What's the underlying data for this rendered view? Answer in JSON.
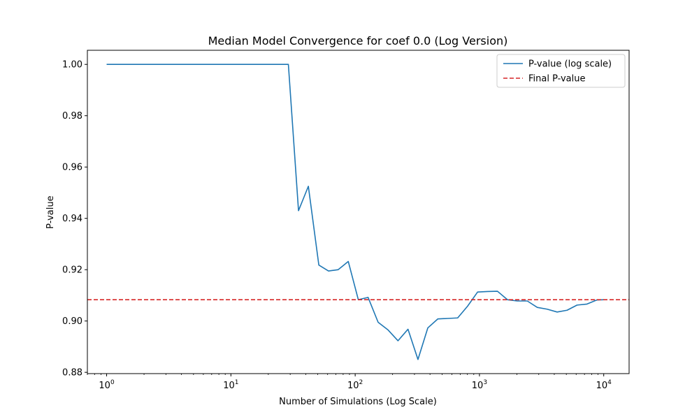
{
  "chart_data": {
    "type": "line",
    "title": "Median Model Convergence for coef 0.0 (Log Version)",
    "xlabel": "Number of Simulations (Log Scale)",
    "ylabel": "P-value",
    "xscale": "log",
    "xlim": [
      0.7,
      16000
    ],
    "ylim": [
      0.8795,
      1.0055
    ],
    "xticks": [
      {
        "value": 1,
        "label": "10",
        "exp": "0"
      },
      {
        "value": 10,
        "label": "10",
        "exp": "1"
      },
      {
        "value": 100,
        "label": "10",
        "exp": "2"
      },
      {
        "value": 1000,
        "label": "10",
        "exp": "3"
      },
      {
        "value": 10000,
        "label": "10",
        "exp": "4"
      }
    ],
    "yticks": [
      {
        "value": 0.88,
        "label": "0.88"
      },
      {
        "value": 0.9,
        "label": "0.90"
      },
      {
        "value": 0.92,
        "label": "0.92"
      },
      {
        "value": 0.94,
        "label": "0.94"
      },
      {
        "value": 0.96,
        "label": "0.96"
      },
      {
        "value": 0.98,
        "label": "0.98"
      },
      {
        "value": 1.0,
        "label": "1.00"
      }
    ],
    "grid": false,
    "legend_position": "top-right",
    "series": [
      {
        "name": "P-value (log scale)",
        "color": "#1f77b4",
        "style": "solid",
        "points": [
          [
            1,
            1.0
          ],
          [
            29,
            1.0
          ],
          [
            35,
            0.943
          ],
          [
            42,
            0.9525
          ],
          [
            51,
            0.9218
          ],
          [
            61,
            0.9195
          ],
          [
            73,
            0.92
          ],
          [
            88,
            0.9232
          ],
          [
            106,
            0.9083
          ],
          [
            127,
            0.9092
          ],
          [
            153,
            0.8995
          ],
          [
            184,
            0.8965
          ],
          [
            221,
            0.8923
          ],
          [
            266,
            0.8968
          ],
          [
            320,
            0.885
          ],
          [
            384,
            0.8973
          ],
          [
            462,
            0.9008
          ],
          [
            556,
            0.901
          ],
          [
            668,
            0.9012
          ],
          [
            803,
            0.9058
          ],
          [
            966,
            0.9113
          ],
          [
            1161,
            0.9115
          ],
          [
            1396,
            0.9116
          ],
          [
            1679,
            0.9083
          ],
          [
            2018,
            0.9078
          ],
          [
            2427,
            0.9078
          ],
          [
            2918,
            0.9053
          ],
          [
            3508,
            0.9046
          ],
          [
            4218,
            0.9035
          ],
          [
            5071,
            0.9042
          ],
          [
            6098,
            0.9062
          ],
          [
            7331,
            0.9066
          ],
          [
            8815,
            0.9082
          ],
          [
            10000,
            0.9083
          ]
        ]
      },
      {
        "name": "Final P-value",
        "color": "#d62728",
        "style": "dashed",
        "hline": 0.9083
      }
    ]
  }
}
